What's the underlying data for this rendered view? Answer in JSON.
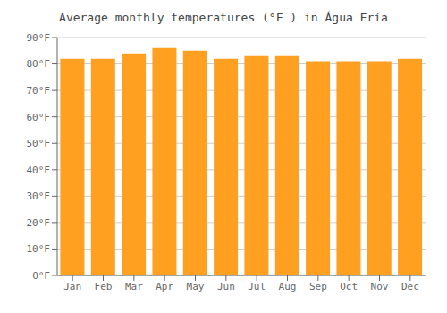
{
  "chart_data": {
    "type": "bar",
    "title": "Average monthly temperatures (°F ) in Água Fría",
    "categories": [
      "Jan",
      "Feb",
      "Mar",
      "Apr",
      "May",
      "Jun",
      "Jul",
      "Aug",
      "Sep",
      "Oct",
      "Nov",
      "Dec"
    ],
    "values": [
      82,
      82,
      84,
      86,
      85,
      82,
      83,
      83,
      81,
      81,
      81,
      82
    ],
    "color": "#FFA020",
    "ylim": [
      0,
      90
    ],
    "yticks": [
      {
        "value": 0,
        "label": "0°F"
      },
      {
        "value": 10,
        "label": "10°F"
      },
      {
        "value": 20,
        "label": "20°F"
      },
      {
        "value": 30,
        "label": "30°F"
      },
      {
        "value": 40,
        "label": "40°F"
      },
      {
        "value": 50,
        "label": "50°F"
      },
      {
        "value": 60,
        "label": "60°F"
      },
      {
        "value": 70,
        "label": "70°F"
      },
      {
        "value": 80,
        "label": "80°F"
      },
      {
        "value": 90,
        "label": "90°F"
      }
    ],
    "grid": true
  }
}
